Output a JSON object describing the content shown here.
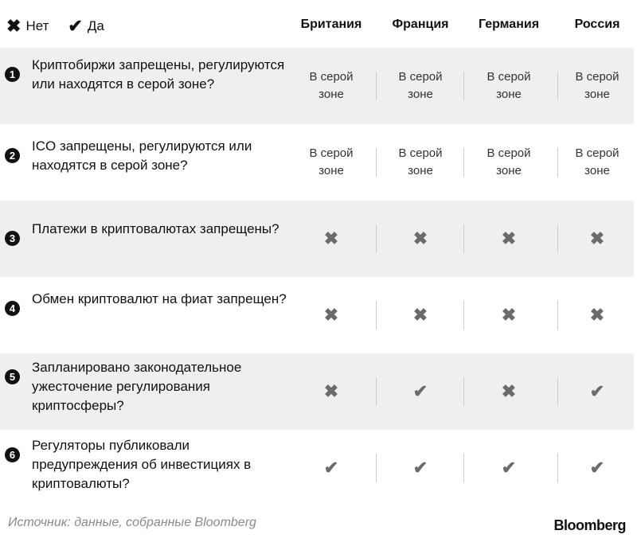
{
  "legend": {
    "no_label": "Нет",
    "yes_label": "Да",
    "no_symbol": "✖",
    "yes_symbol": "✔"
  },
  "columns": [
    "Британия",
    "Франция",
    "Германия",
    "Россия"
  ],
  "grey_zone_label": "В серой зоне",
  "rows": [
    {
      "num": "1",
      "question": "Криптобиржи запрещены, регулируются или находятся в серой зоне?",
      "values": [
        "grey",
        "grey",
        "grey",
        "grey"
      ]
    },
    {
      "num": "2",
      "question": "ICO запрещены, регулируются или находятся в серой зоне?",
      "values": [
        "grey",
        "grey",
        "grey",
        "grey"
      ]
    },
    {
      "num": "3",
      "question": "Платежи в криптовалютах запрещены?",
      "values": [
        "no",
        "no",
        "no",
        "no"
      ]
    },
    {
      "num": "4",
      "question": "Обмен криптовалют на фиат запрещен?",
      "values": [
        "no",
        "no",
        "no",
        "no"
      ]
    },
    {
      "num": "5",
      "question": "Запланировано законодательное ужесточение регулирования криптосферы?",
      "values": [
        "no",
        "yes",
        "no",
        "yes"
      ]
    },
    {
      "num": "6",
      "question": "Регуляторы публиковали предупреждения об инвестициях в криптовалюты?",
      "values": [
        "yes",
        "yes",
        "yes",
        "yes"
      ]
    }
  ],
  "footer": {
    "source": "Источник: данные, собранные Bloomberg",
    "logo": "Bloomberg"
  },
  "colors": {
    "row_gray": "#efefef",
    "mark": "#6b6b6b"
  }
}
